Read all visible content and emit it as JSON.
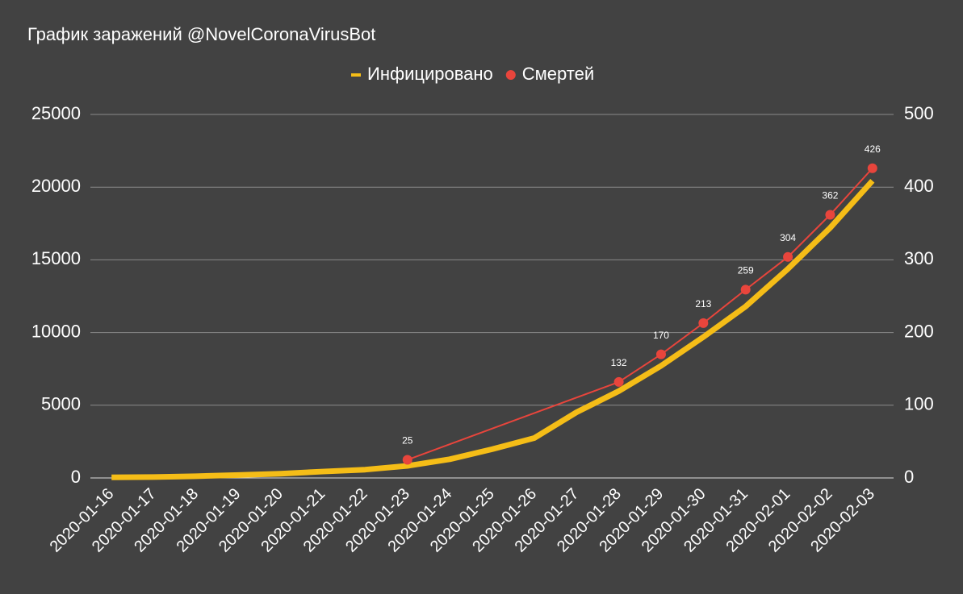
{
  "chart_data": {
    "type": "line",
    "title": "График заражений @NovelCoronaVirusBot",
    "categories": [
      "2020-01-16",
      "2020-01-17",
      "2020-01-18",
      "2020-01-19",
      "2020-01-20",
      "2020-01-21",
      "2020-01-22",
      "2020-01-23",
      "2020-01-24",
      "2020-01-25",
      "2020-01-26",
      "2020-01-27",
      "2020-01-28",
      "2020-01-29",
      "2020-01-30",
      "2020-01-31",
      "2020-02-01",
      "2020-02-02",
      "2020-02-03"
    ],
    "series": [
      {
        "name": "Инфицировано",
        "color": "#f5bd17",
        "values": [
          45,
          62,
          121,
          198,
          291,
          440,
          571,
          830,
          1287,
          1975,
          2744,
          4515,
          5974,
          7711,
          9692,
          11791,
          14380,
          17205,
          20438
        ]
      },
      {
        "name": "Смертей",
        "color": "#e8453c",
        "axis": "y2",
        "data_labels": true,
        "connect_gaps": true,
        "values": [
          null,
          null,
          null,
          null,
          null,
          null,
          null,
          25,
          null,
          null,
          null,
          null,
          132,
          170,
          213,
          259,
          304,
          362,
          426
        ]
      }
    ],
    "ylim": [
      0,
      25000
    ],
    "yticks": [
      0,
      5000,
      10000,
      15000,
      20000,
      25000
    ],
    "y2lim": [
      0,
      500
    ],
    "y2ticks": [
      0,
      100,
      200,
      300,
      400,
      500
    ],
    "grid": true,
    "legend": "top"
  }
}
